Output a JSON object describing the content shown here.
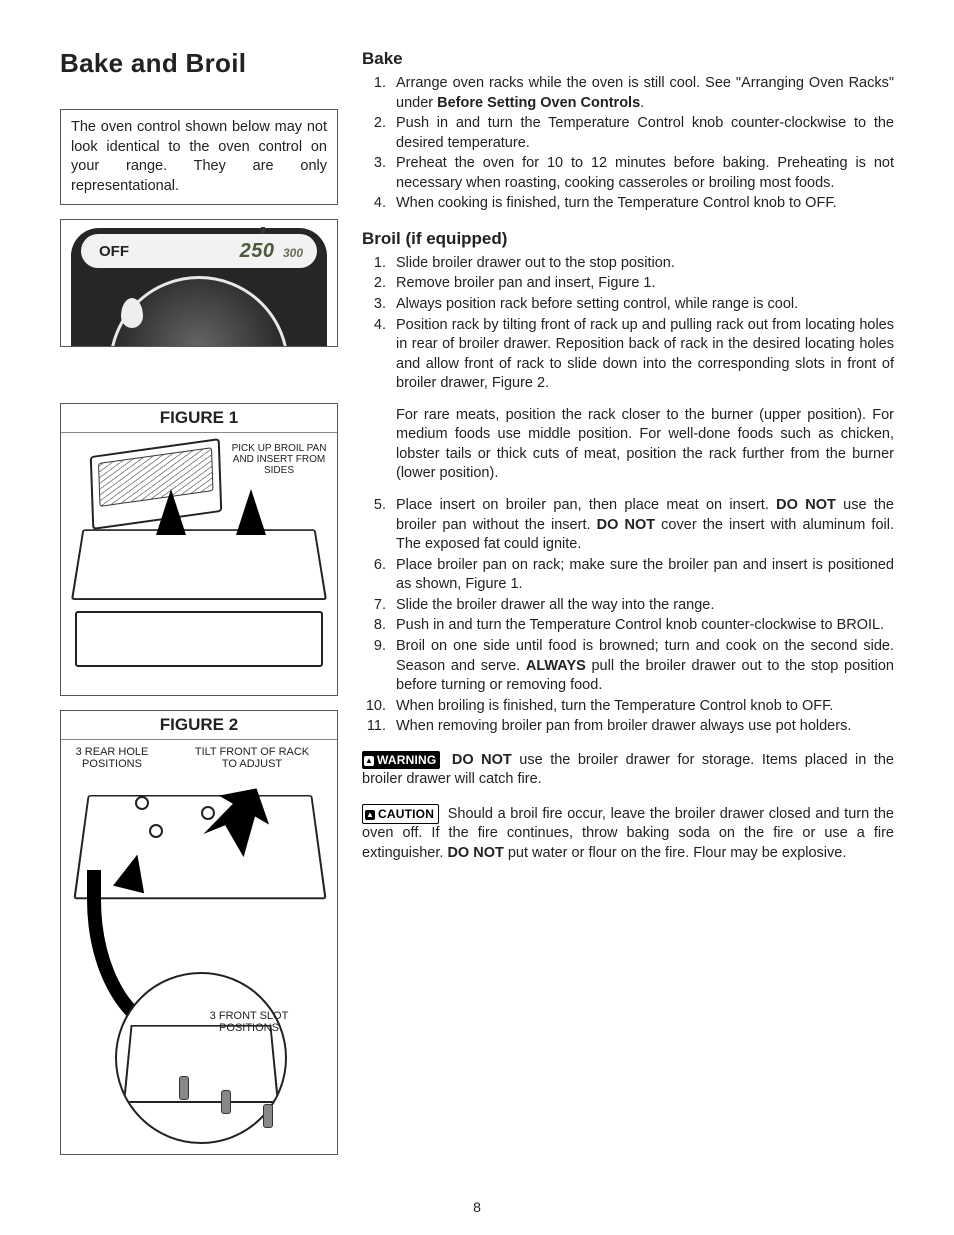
{
  "page": {
    "number": "8",
    "main_title": "Bake and Broil"
  },
  "left": {
    "note": "The oven control shown below may not look identical to the oven control on your range. They are only representational.",
    "knob": {
      "off_label": "OFF",
      "temp_main": "250",
      "temp_small": "300"
    },
    "figure1": {
      "title": "FIGURE 1",
      "label": "PICK UP BROIL PAN AND INSERT FROM SIDES"
    },
    "figure2": {
      "title": "FIGURE 2",
      "label_rear": "3 REAR HOLE POSITIONS",
      "label_tilt": "TILT FRONT OF RACK TO ADJUST",
      "label_front": "3 FRONT SLOT POSITIONS"
    }
  },
  "bake": {
    "heading": "Bake",
    "items": [
      {
        "pre": "Arrange oven racks while the oven is still cool. See \"Arranging Oven Racks\" under ",
        "bold": "Before Setting Oven Controls",
        "post": "."
      },
      {
        "text": "Push in and turn the Temperature Control knob counter-clockwise to the desired temperature."
      },
      {
        "text": "Preheat the oven for 10 to 12 minutes before baking. Preheating is not necessary when roasting, cooking casseroles or broiling most foods."
      },
      {
        "text": "When cooking is finished, turn the Temperature Control knob to OFF."
      }
    ]
  },
  "broil": {
    "heading": "Broil (if equipped)",
    "items1_4": [
      "Slide broiler drawer out to the stop position.",
      "Remove broiler pan and insert, Figure 1.",
      "Always position rack before setting control, while range is cool.",
      "Position rack by tilting front of rack up and pulling rack out from locating holes in rear of broiler drawer. Reposition back of rack in the desired locating holes and allow front of rack to slide down into the corresponding slots in front of broiler drawer, Figure 2."
    ],
    "mid_para": "For rare meats, position the rack closer to the burner (upper position). For medium foods use middle position. For well-done foods such as chicken, lobster tails or thick cuts of meat, position the rack further from the burner (lower position).",
    "item5": {
      "pre": "Place insert on broiler pan, then place meat on insert. ",
      "b1": "DO NOT",
      "mid": " use the broiler pan without the insert. ",
      "b2": "DO NOT",
      "post": " cover the insert with aluminum foil. The exposed fat could ignite."
    },
    "item6": "Place broiler pan on rack; make sure the broiler pan and insert is positioned as shown, Figure 1.",
    "item7": "Slide the broiler drawer all the way into the range.",
    "item8": "Push in and turn the Temperature Control knob counter-clockwise to BROIL.",
    "item9": {
      "pre": "Broil on one side until food is browned; turn and cook on the second side. Season and serve. ",
      "b": "ALWAYS",
      "post": " pull the broiler drawer out to the stop position before turning or removing food."
    },
    "item10": "When broiling is finished, turn the Temperature Control knob to OFF.",
    "item11": "When removing broiler pan from broiler drawer always use pot holders."
  },
  "warning": {
    "badge": "WARNING",
    "b": "DO NOT",
    "text": " use the broiler drawer for storage. Items placed in the broiler drawer will catch fire."
  },
  "caution": {
    "badge": "CAUTION",
    "pre": " Should a broil fire occur, leave the broiler drawer closed and turn the oven off. If the fire continues, throw baking soda on the fire or use a fire extinguisher. ",
    "b": "DO NOT",
    "post": " put water or flour on the fire. Flour may be explosive."
  }
}
